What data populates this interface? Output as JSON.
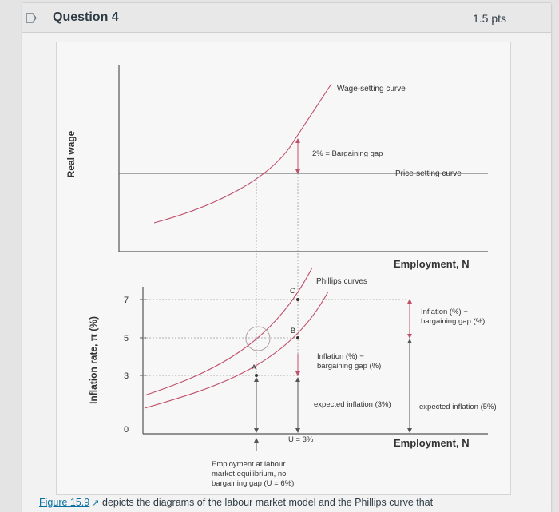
{
  "header": {
    "title": "Question 4",
    "points": "1.5 pts"
  },
  "figure": {
    "top": {
      "ylabel": "Real wage",
      "xlabel": "Employment, N",
      "wage_curve_label": "Wage-setting curve",
      "price_curve_label": "Price-setting curve",
      "gap_label": "2% = Bargaining gap"
    },
    "bottom": {
      "ylabel": "Inflation rate, π (%)",
      "xlabel": "Employment, N",
      "phillips_label": "Phillips curves",
      "ticks": [
        "7",
        "5",
        "3",
        "0"
      ],
      "points": [
        "C",
        "B",
        "A"
      ],
      "infl_gap_left_1": "Inflation (%) −",
      "infl_gap_left_2": "bargaining gap (%)",
      "infl_gap_right_1": "Inflation (%) −",
      "infl_gap_right_2": "bargaining gap (%)",
      "expected_3": "expected inflation (3%)",
      "expected_5": "expected inflation (5%)",
      "u_label": "U = 3%",
      "emp_eq_1": "Employment at labour",
      "emp_eq_2": "market equilibrium, no",
      "emp_eq_3": "bargaining gap (U = 6%)"
    }
  },
  "caption": {
    "link": "Figure 15.9",
    "text": " depicts the diagrams of the labour market model and the Phillips curve that"
  },
  "colors": {
    "curve": "#c0506a",
    "axis": "#555555",
    "link": "#0770a3"
  }
}
